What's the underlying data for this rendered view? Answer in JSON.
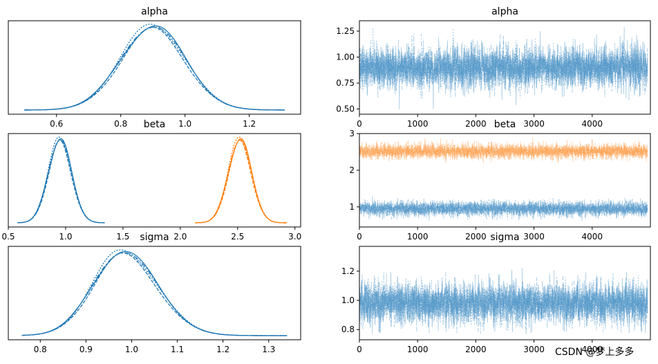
{
  "chart_data": [
    {
      "type": "area",
      "panel": "alpha-density",
      "title": "alpha",
      "xlabel": "",
      "ylabel": "",
      "xlim": [
        0.45,
        1.36
      ],
      "xticks": [
        0.6,
        0.8,
        1.0,
        1.2
      ],
      "xtick_labels": [
        "0.6",
        "0.8",
        "1.0",
        "1.2"
      ],
      "series": [
        {
          "name": "alpha",
          "color": "#1f77b4",
          "mean": 0.9,
          "sd": 0.1,
          "range": [
            0.5,
            1.31
          ]
        }
      ]
    },
    {
      "type": "line",
      "panel": "alpha-trace",
      "title": "alpha",
      "xlabel": "",
      "ylabel": "",
      "xlim": [
        0,
        5000
      ],
      "ylim": [
        0.45,
        1.35
      ],
      "xticks": [
        0,
        1000,
        2000,
        3000,
        4000
      ],
      "xtick_labels": [
        "0",
        "1000",
        "2000",
        "3000",
        "4000"
      ],
      "yticks": [
        0.5,
        0.75,
        1.0,
        1.25
      ],
      "ytick_labels": [
        "0.50",
        "0.75",
        "1.00",
        "1.25"
      ],
      "series": [
        {
          "name": "alpha",
          "color": "#4c93c6",
          "mean": 0.9,
          "sd": 0.1,
          "min": 0.49,
          "max": 1.31
        }
      ]
    },
    {
      "type": "area",
      "panel": "beta-density",
      "title": "beta",
      "xlabel": "",
      "ylabel": "",
      "xlim": [
        0.5,
        3.05
      ],
      "xticks": [
        0.5,
        1.0,
        1.5,
        2.0,
        2.5,
        3.0
      ],
      "xtick_labels": [
        "0.5",
        "1.0",
        "1.5",
        "2.0",
        "2.5",
        "3.0"
      ],
      "series": [
        {
          "name": "beta[0]",
          "color": "#1f77b4",
          "mean": 0.95,
          "sd": 0.1,
          "range": [
            0.58,
            1.34
          ]
        },
        {
          "name": "beta[1]",
          "color": "#ff7f0e",
          "mean": 2.52,
          "sd": 0.1,
          "range": [
            2.13,
            2.93
          ]
        }
      ]
    },
    {
      "type": "line",
      "panel": "beta-trace",
      "title": "beta",
      "xlabel": "",
      "ylabel": "",
      "xlim": [
        0,
        5000
      ],
      "ylim": [
        0.45,
        3.0
      ],
      "xticks": [
        0,
        1000,
        2000,
        3000,
        4000
      ],
      "xtick_labels": [
        "0",
        "1000",
        "2000",
        "3000",
        "4000"
      ],
      "yticks": [
        1,
        2,
        3
      ],
      "ytick_labels": [
        "1",
        "2",
        "3"
      ],
      "series": [
        {
          "name": "beta[0]",
          "color": "#4c93c6",
          "mean": 0.95,
          "sd": 0.1,
          "min": 0.55,
          "max": 1.35
        },
        {
          "name": "beta[1]",
          "color": "#ffa04f",
          "mean": 2.52,
          "sd": 0.1,
          "min": 2.1,
          "max": 2.95
        }
      ]
    },
    {
      "type": "area",
      "panel": "sigma-density",
      "title": "sigma",
      "xlabel": "",
      "ylabel": "",
      "xlim": [
        0.73,
        1.37
      ],
      "xticks": [
        0.8,
        0.9,
        1.0,
        1.1,
        1.2,
        1.3
      ],
      "xtick_labels": [
        "0.8",
        "0.9",
        "1.0",
        "1.1",
        "1.2",
        "1.3"
      ],
      "series": [
        {
          "name": "sigma",
          "color": "#1f77b4",
          "mean": 0.98,
          "sd": 0.07,
          "skew": 0.6,
          "range": [
            0.76,
            1.34
          ]
        }
      ]
    },
    {
      "type": "line",
      "panel": "sigma-trace",
      "title": "sigma",
      "xlabel": "",
      "ylabel": "",
      "xlim": [
        0,
        5000
      ],
      "ylim": [
        0.73,
        1.37
      ],
      "xticks": [
        0,
        1000,
        2000,
        3000,
        4000
      ],
      "xtick_labels": [
        "0",
        "1000",
        "2000",
        "3000",
        "4000"
      ],
      "yticks": [
        0.8,
        1.0,
        1.2
      ],
      "ytick_labels": [
        "0.8",
        "1.0",
        "1.2"
      ],
      "series": [
        {
          "name": "sigma",
          "color": "#4c93c6",
          "mean": 0.98,
          "sd": 0.07,
          "min": 0.77,
          "max": 1.35
        }
      ]
    }
  ],
  "watermark": "CSDN @梦上多多"
}
